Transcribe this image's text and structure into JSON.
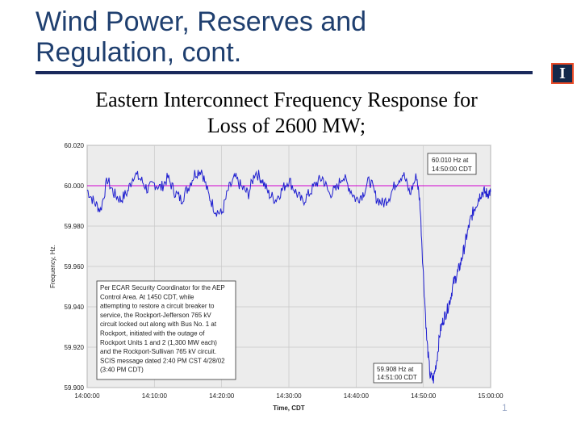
{
  "slide": {
    "title_line1": "Wind Power, Reserves and",
    "title_line2": "Regulation, cont.",
    "subtitle_line1": "Eastern Interconnect Frequency Response for",
    "subtitle_line2": "Loss of 2600 MW;",
    "logo_letter": "I",
    "page_number": "1"
  },
  "colors": {
    "title": "#1f3f6f",
    "series": "#1f1fd0",
    "reference_line": "#d000d0",
    "plot_bg": "#ececec",
    "grid": "#c8c8c8"
  },
  "chart_data": {
    "type": "line",
    "title": "",
    "xlabel": "Time, CDT",
    "ylabel": "Frequency, Hz.",
    "x_ticks": [
      "14:00:00",
      "14:10:00",
      "14:20:00",
      "14:30:00",
      "14:40:00",
      "14:50:00",
      "15:00:00"
    ],
    "y_ticks": [
      "60.020",
      "60.000",
      "59.980",
      "59.960",
      "59.940",
      "59.920",
      "59.900"
    ],
    "xlim_minutes": [
      0,
      60
    ],
    "ylim": [
      59.9,
      60.02
    ],
    "reference_line": 60.0,
    "series": [
      {
        "name": "Frequency",
        "x_minutes": [
          0,
          1,
          2,
          3,
          4,
          5,
          6,
          7,
          8,
          9,
          10,
          11,
          12,
          13,
          14,
          15,
          16,
          17,
          18,
          19,
          20,
          21,
          22,
          23,
          24,
          25,
          26,
          27,
          28,
          29,
          30,
          31,
          32,
          33,
          34,
          35,
          36,
          37,
          38,
          39,
          40,
          41,
          42,
          43,
          44,
          45,
          46,
          47,
          48,
          49,
          49.5,
          50,
          50.5,
          51,
          51.5,
          52,
          52.5,
          53,
          53.5,
          54,
          54.5,
          55,
          55.5,
          56,
          56.5,
          57,
          57.5,
          58,
          58.5,
          59,
          59.5,
          60
        ],
        "values": [
          59.998,
          59.992,
          59.988,
          60.003,
          59.996,
          59.993,
          59.997,
          60.006,
          60.003,
          59.998,
          60.001,
          59.999,
          60.004,
          59.997,
          59.993,
          59.999,
          60.006,
          60.008,
          59.996,
          59.988,
          59.986,
          59.998,
          60.004,
          59.999,
          59.996,
          60.007,
          60.003,
          59.996,
          59.993,
          59.998,
          60.003,
          59.997,
          59.992,
          59.996,
          60.001,
          60.004,
          59.996,
          59.998,
          60.005,
          59.999,
          59.993,
          59.996,
          60.003,
          59.994,
          59.991,
          59.995,
          60.002,
          60.006,
          59.996,
          60.005,
          59.991,
          59.956,
          59.924,
          59.906,
          59.904,
          59.914,
          59.928,
          59.934,
          59.938,
          59.944,
          59.952,
          59.956,
          59.961,
          59.968,
          59.976,
          59.983,
          59.988,
          59.992,
          59.996,
          59.997,
          59.996,
          59.997
        ]
      }
    ],
    "annotations": {
      "top_box_line1": "60.010 Hz at",
      "top_box_line2": "14:50:00 CDT",
      "bottom_box_line1": "59.908 Hz at",
      "bottom_box_line2": "14:51:00 CDT",
      "note_lines": [
        "Per ECAR Security Coordinator for the AEP",
        "Control Area. At 1450 CDT, while",
        "attempting to restore a circuit breaker to",
        "service, the Rockport-Jefferson 765 kV",
        "circuit locked out along with Bus No. 1 at",
        "Rockport, initiated with the outage of",
        "Rockport Units 1 and 2 (1,300 MW each)",
        "and the Rockport-Sullivan 765 kV circuit.",
        "SCIS message dated 2:40 PM CST 4/28/02",
        "(3:40 PM CDT)"
      ]
    }
  }
}
